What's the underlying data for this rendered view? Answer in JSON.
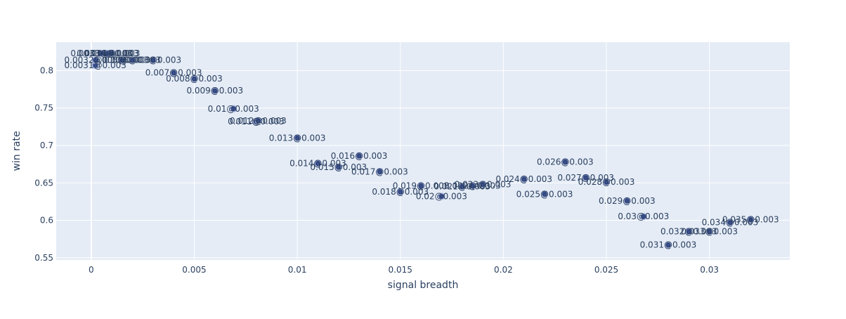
{
  "chart_data": {
    "type": "scatter",
    "title": "",
    "xlabel": "signal breadth",
    "ylabel": "win rate",
    "xlim": [
      -0.0017,
      0.0339
    ],
    "ylim": [
      0.547,
      0.838
    ],
    "grid": true,
    "legend": "none",
    "x_ticks": [
      0,
      0.005,
      0.01,
      0.015,
      0.02,
      0.025,
      0.03
    ],
    "x_tick_labels": [
      "0",
      "0.005",
      "0.01",
      "0.015",
      "0.02",
      "0.025",
      "0.03"
    ],
    "y_ticks": [
      0.55,
      0.6,
      0.65,
      0.7,
      0.75,
      0.8
    ],
    "y_tick_labels": [
      "0.55",
      "0.6",
      "0.65",
      "0.7",
      "0.75",
      "0.8"
    ],
    "colors": {
      "plot_bg": "#e5ecf6",
      "grid": "#ffffff",
      "marker": "#3d5296",
      "marker_edge": "#b4bee0",
      "text": "#2a3f5f"
    },
    "points": [
      {
        "x": 0.0002,
        "y": 0.807,
        "label": "0.0031@0.003"
      },
      {
        "x": 0.0002,
        "y": 0.814,
        "label": "0.0032@0.003"
      },
      {
        "x": 0.0005,
        "y": 0.823,
        "label": "0.0033@0.003"
      },
      {
        "x": 0.0008,
        "y": 0.823,
        "label": "0.0034@0.003"
      },
      {
        "x": 0.001,
        "y": 0.823,
        "label": "0.001@0.003"
      },
      {
        "x": 0.0015,
        "y": 0.814,
        "label": "0.005@0.003"
      },
      {
        "x": 0.002,
        "y": 0.814,
        "label": "0.006@0.003"
      },
      {
        "x": 0.003,
        "y": 0.814,
        "label": "0.003@0.003"
      },
      {
        "x": 0.004,
        "y": 0.797,
        "label": "0.007@0.003"
      },
      {
        "x": 0.005,
        "y": 0.789,
        "label": "0.008@0.003"
      },
      {
        "x": 0.006,
        "y": 0.773,
        "label": "0.009@0.003"
      },
      {
        "x": 0.0069,
        "y": 0.749,
        "label": "0.01@0.003"
      },
      {
        "x": 0.008,
        "y": 0.732,
        "label": "0.011@0.003"
      },
      {
        "x": 0.0081,
        "y": 0.733,
        "label": "0.012@0.003"
      },
      {
        "x": 0.01,
        "y": 0.71,
        "label": "0.013@0.003"
      },
      {
        "x": 0.011,
        "y": 0.676,
        "label": "0.014@0.003"
      },
      {
        "x": 0.012,
        "y": 0.671,
        "label": "0.015@0.003"
      },
      {
        "x": 0.013,
        "y": 0.686,
        "label": "0.016@0.003"
      },
      {
        "x": 0.014,
        "y": 0.665,
        "label": "0.017@0.003"
      },
      {
        "x": 0.015,
        "y": 0.638,
        "label": "0.018@0.003"
      },
      {
        "x": 0.016,
        "y": 0.646,
        "label": "0.019@0.003"
      },
      {
        "x": 0.017,
        "y": 0.632,
        "label": "0.02@0.003"
      },
      {
        "x": 0.018,
        "y": 0.645,
        "label": "0.021@0.003"
      },
      {
        "x": 0.0185,
        "y": 0.646,
        "label": "0.022@0.003"
      },
      {
        "x": 0.019,
        "y": 0.648,
        "label": "0.023@0.003"
      },
      {
        "x": 0.021,
        "y": 0.655,
        "label": "0.024@0.003"
      },
      {
        "x": 0.022,
        "y": 0.635,
        "label": "0.025@0.003"
      },
      {
        "x": 0.023,
        "y": 0.678,
        "label": "0.026@0.003"
      },
      {
        "x": 0.024,
        "y": 0.657,
        "label": "0.027@0.003"
      },
      {
        "x": 0.025,
        "y": 0.651,
        "label": "0.028@0.003"
      },
      {
        "x": 0.026,
        "y": 0.626,
        "label": "0.029@0.003"
      },
      {
        "x": 0.0268,
        "y": 0.605,
        "label": "0.03@0.003"
      },
      {
        "x": 0.028,
        "y": 0.567,
        "label": "0.031@0.003"
      },
      {
        "x": 0.029,
        "y": 0.585,
        "label": "0.032@0.003"
      },
      {
        "x": 0.03,
        "y": 0.585,
        "label": "0.033@0.003"
      },
      {
        "x": 0.031,
        "y": 0.597,
        "label": "0.034@0.003"
      },
      {
        "x": 0.032,
        "y": 0.601,
        "label": "0.035@0.003"
      }
    ]
  }
}
